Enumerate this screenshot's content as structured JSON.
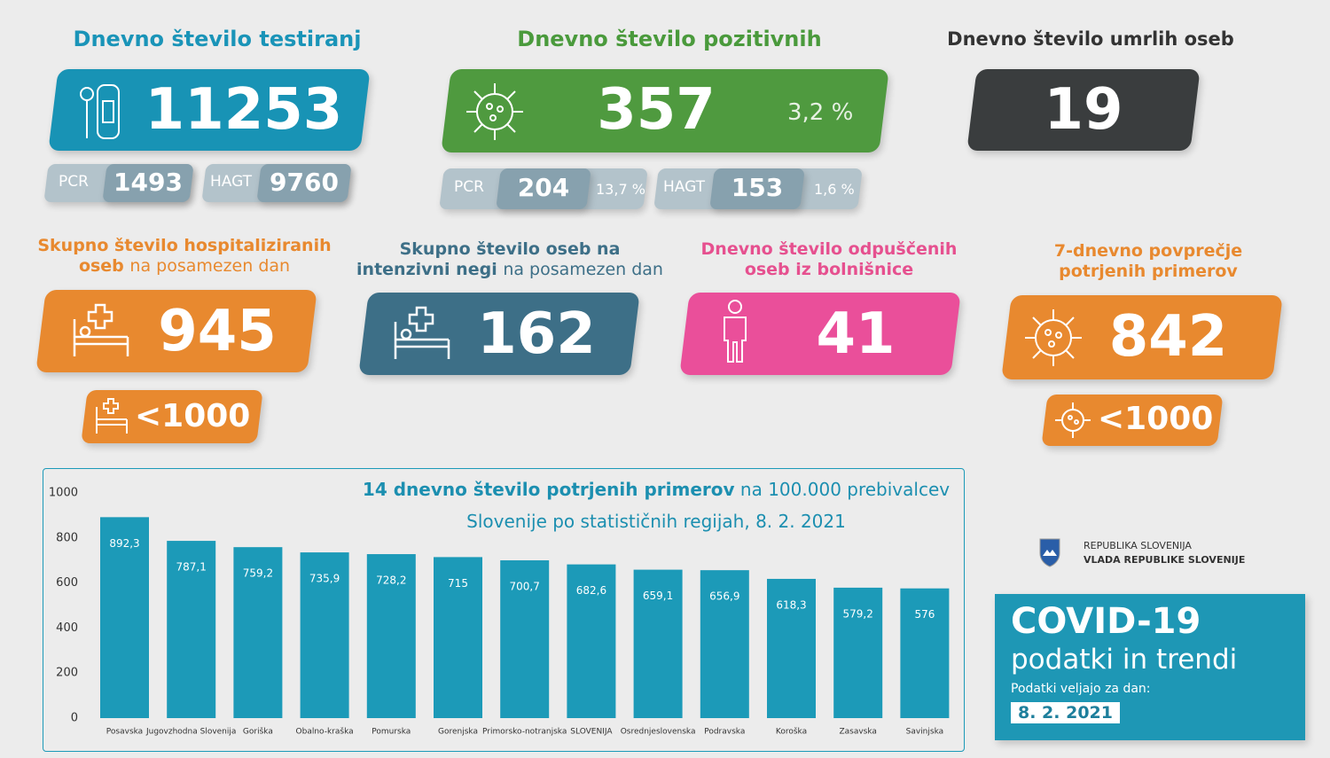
{
  "tests": {
    "title": "Dnevno število testiranj",
    "value": 11253,
    "pcr_label": "PCR",
    "pcr": 1493,
    "hagt_label": "HAGT",
    "hagt": 9760
  },
  "positive": {
    "title": "Dnevno število pozitivnih",
    "value": 357,
    "share": "3,2 %",
    "pcr_label": "PCR",
    "pcr": 204,
    "pcr_share": "13,7 %",
    "hagt_label": "HAGT",
    "hagt": 153,
    "hagt_share": "1,6 %"
  },
  "deaths": {
    "title": "Dnevno število umrlih oseb",
    "value": 19
  },
  "hospitalized": {
    "title_bold": "Skupno število hospitaliziranih oseb",
    "title_rest": "na posamezen dan",
    "value": 945,
    "threshold": "<1000"
  },
  "icu": {
    "title_bold": "Skupno število oseb na intenzivni negi",
    "title_rest": "na posamezen dan",
    "value": 162
  },
  "discharged": {
    "title": "Dnevno število odpuščenih oseb iz bolnišnice",
    "value": 41
  },
  "average": {
    "title": "7-dnevno povprečje potrjenih primerov",
    "value": 842,
    "threshold": "<1000"
  },
  "chart_data": {
    "type": "bar",
    "title_bold": "14 dnevno število potrjenih primerov",
    "title_rest": "na 100.000 prebivalcev Slovenije po statističnih regijah, 8. 2. 2021",
    "categories": [
      "Posavska",
      "Jugovzhodna Slovenija",
      "Goriška",
      "Obalno-kraška",
      "Pomurska",
      "Gorenjska",
      "Primorsko-notranjska",
      "SLOVENIJA",
      "Osrednjeslovenska",
      "Podravska",
      "Koroška",
      "Zasavska",
      "Savinjska"
    ],
    "values": [
      892.3,
      787.1,
      759.2,
      735.9,
      728.2,
      715,
      700.7,
      682.6,
      659.1,
      656.9,
      618.3,
      579.2,
      576
    ],
    "value_labels": [
      "892,3",
      "787,1",
      "759,2",
      "735,9",
      "728,2",
      "715",
      "700,7",
      "682,6",
      "659,1",
      "656,9",
      "618,3",
      "579,2",
      "576"
    ],
    "color": "#1c9ab8",
    "ylim": [
      0,
      1000
    ],
    "yticks": [
      0,
      200,
      400,
      600,
      800,
      1000
    ]
  },
  "branding": {
    "line1": "REPUBLIKA SLOVENIJA",
    "line2": "VLADA REPUBLIKE SLOVENIJE"
  },
  "footer": {
    "title": "COVID-19",
    "subtitle": "podatki in trendi",
    "note": "Podatki veljajo za dan:",
    "date": "8. 2. 2021"
  }
}
